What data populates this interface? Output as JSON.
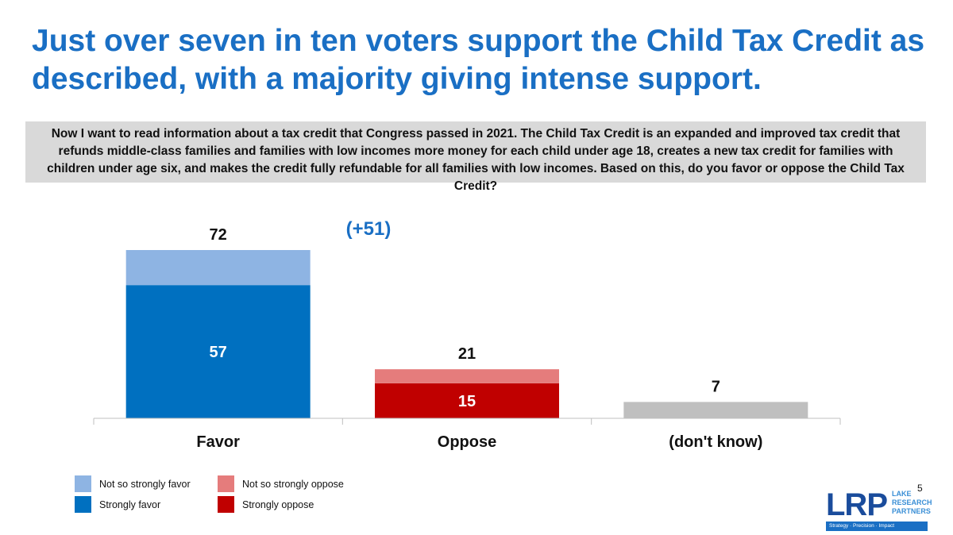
{
  "title": "Just over seven in ten voters support the Child Tax Credit as described, with a majority giving intense support.",
  "question": "Now I want to read information about a tax credit that Congress passed in 2021. The Child Tax Credit is an expanded and improved tax credit that refunds middle-class families and families with low incomes more money for each child under age 18, creates a new tax credit for families with children under age six, and makes the credit fully refundable for all families with low incomes. Based on this, do you favor or oppose the Child Tax Credit?",
  "chart_data": {
    "type": "bar",
    "stacked": true,
    "categories": [
      "Favor",
      "Oppose",
      "(don't know)"
    ],
    "totals": [
      72,
      21,
      7
    ],
    "inner_values": [
      57,
      15,
      null
    ],
    "annotation": "(+51)",
    "ylim": [
      0,
      100
    ],
    "grid": false,
    "legend_position": "bottom-left",
    "bars": [
      {
        "category": "Favor",
        "segments": [
          {
            "series": "Strongly favor",
            "value": 57,
            "color": "#0070c0"
          },
          {
            "series": "Not so strongly favor",
            "value": 15,
            "color": "#8eb4e3"
          }
        ]
      },
      {
        "category": "Oppose",
        "segments": [
          {
            "series": "Strongly oppose",
            "value": 15,
            "color": "#c00000"
          },
          {
            "series": "Not so strongly oppose",
            "value": 6,
            "color": "#e57c7c"
          }
        ]
      },
      {
        "category": "(don't know)",
        "segments": [
          {
            "series": "",
            "value": 7,
            "color": "#bfbfbf"
          }
        ]
      }
    ]
  },
  "legend": {
    "not_so_strongly_favor": {
      "label": "Not so strongly favor",
      "color": "#8eb4e3"
    },
    "strongly_favor": {
      "label": "Strongly favor",
      "color": "#0070c0"
    },
    "not_so_strongly_oppose": {
      "label": "Not so strongly oppose",
      "color": "#e57c7c"
    },
    "strongly_oppose": {
      "label": "Strongly oppose",
      "color": "#c00000"
    }
  },
  "slide_number": "5",
  "logo": {
    "mark": "LRP",
    "line1": "LAKE",
    "line2": "RESEARCH",
    "line3": "PARTNERS",
    "tagline": "Strategy · Precision · Impact"
  }
}
